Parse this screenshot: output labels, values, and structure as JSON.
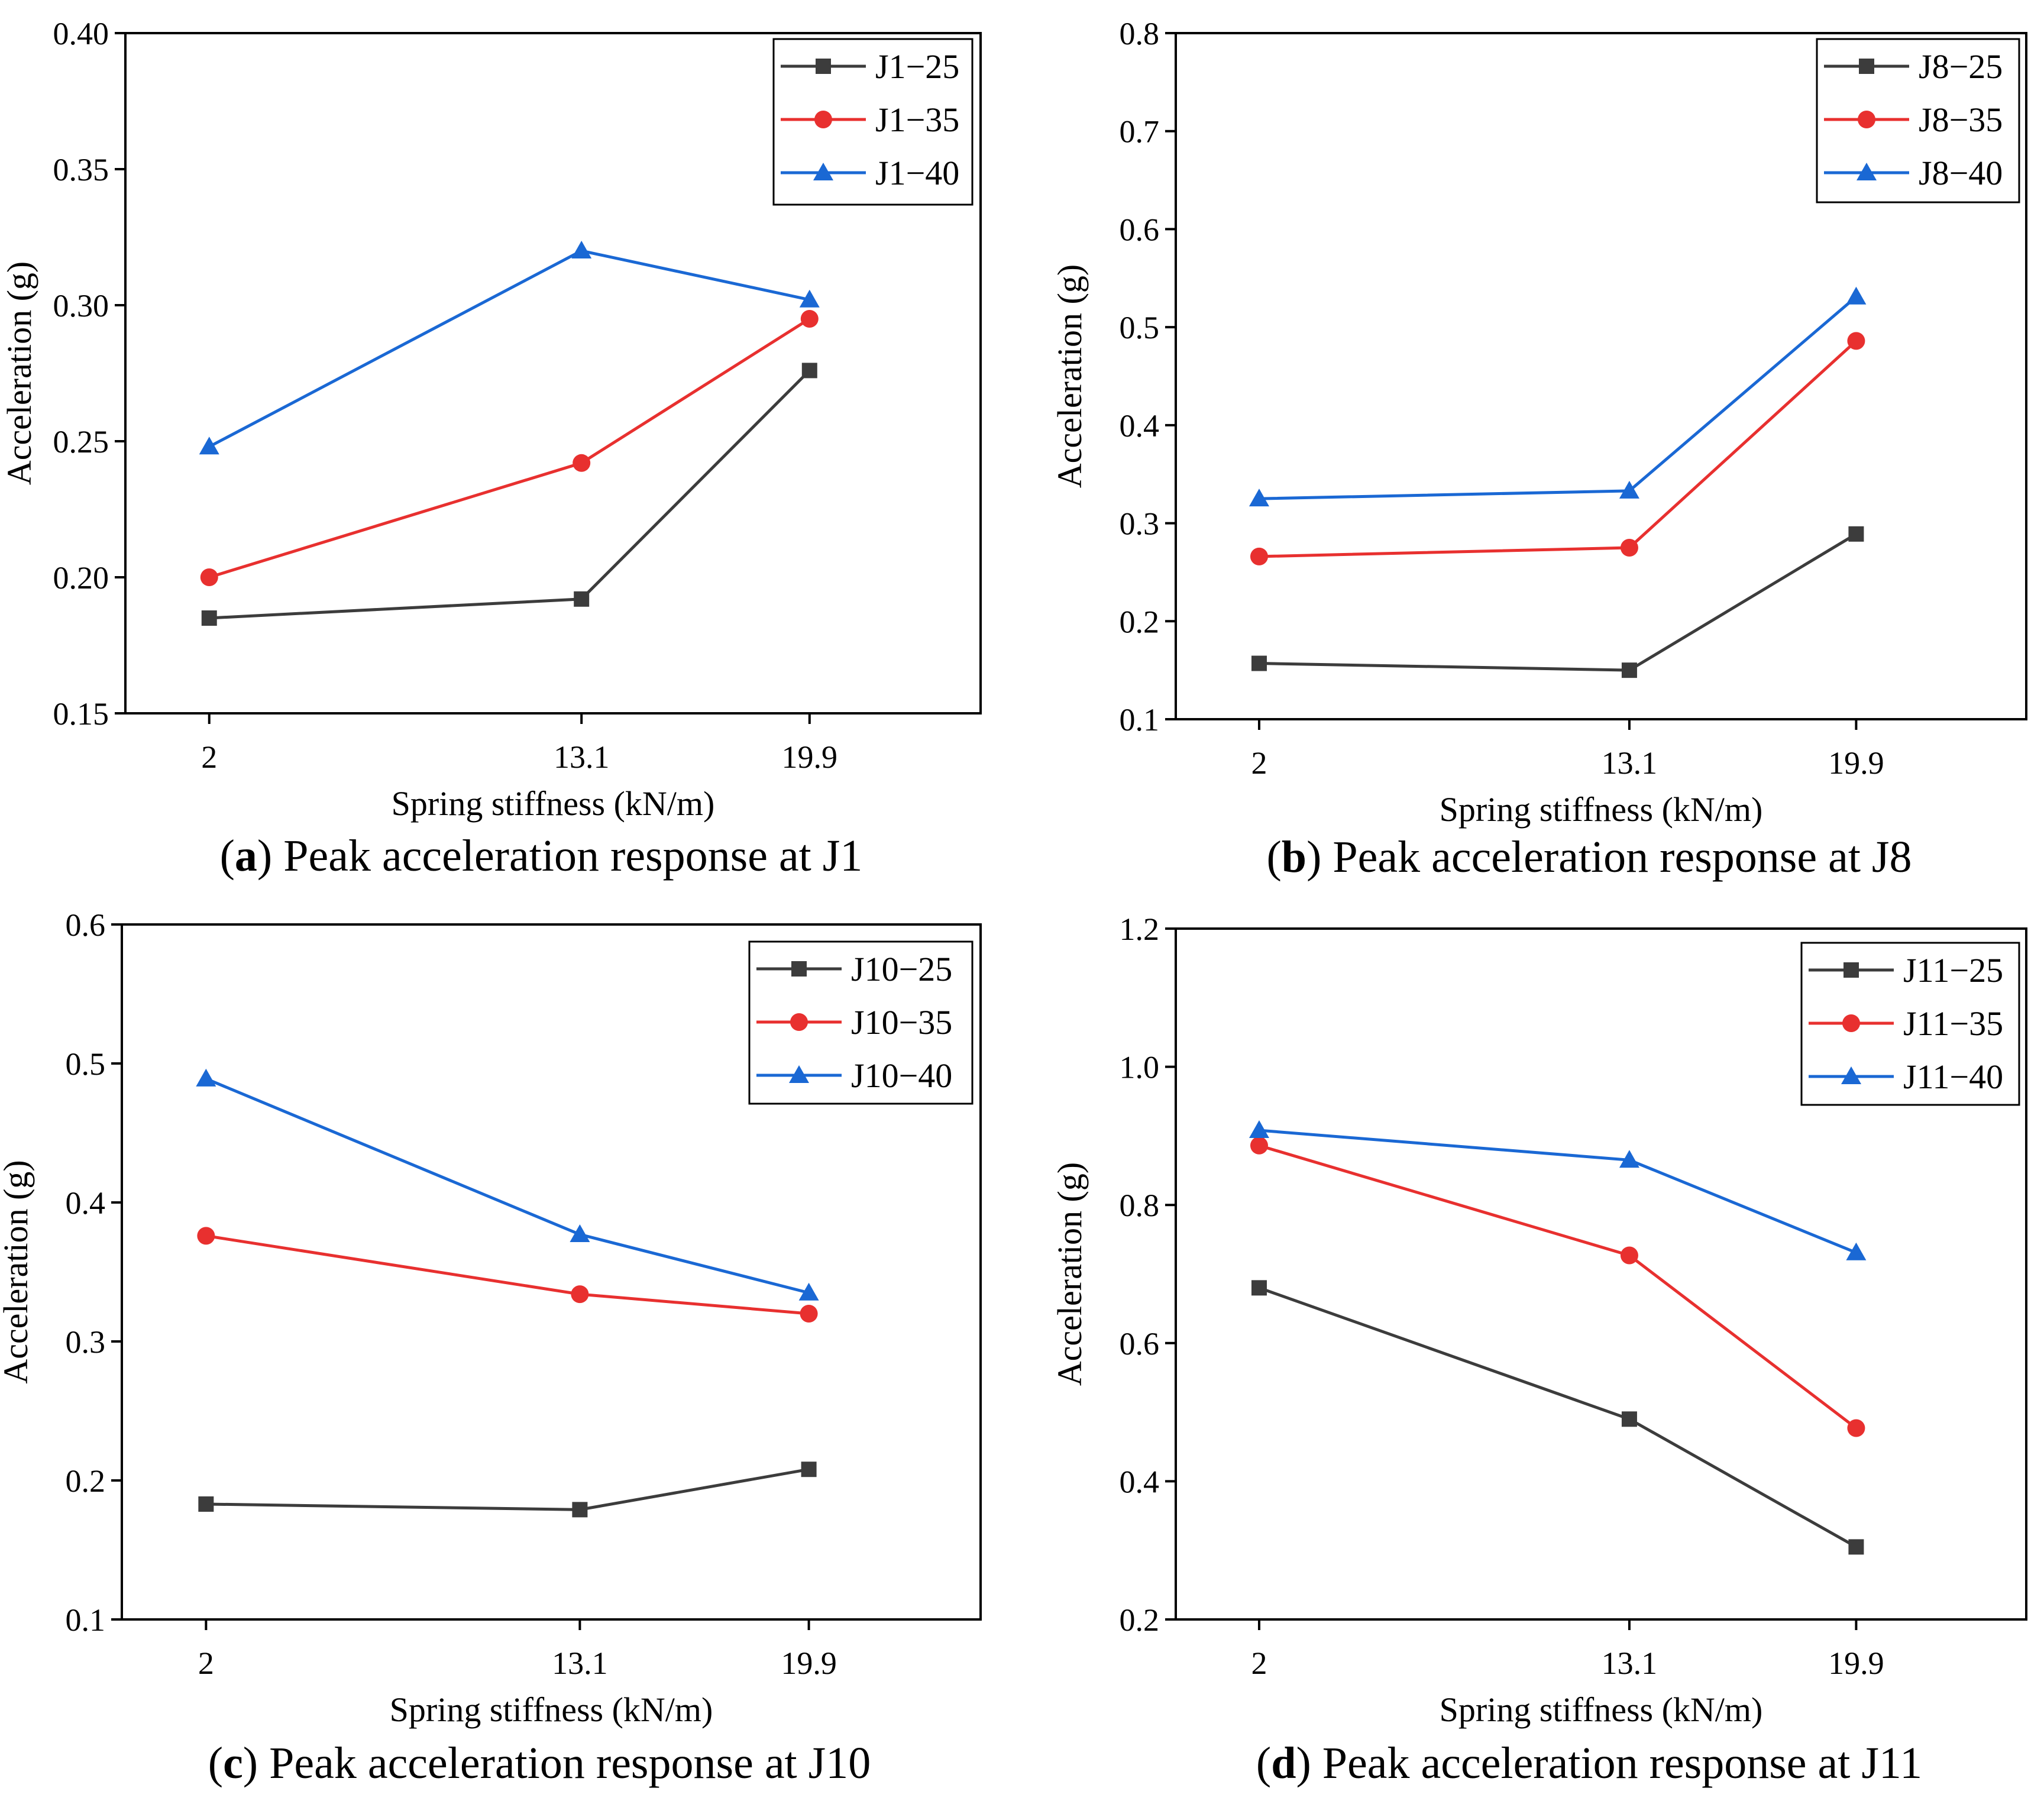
{
  "colors": {
    "series_1": "#3c3c3c",
    "series_2": "#e8302f",
    "series_3": "#1a68d4"
  },
  "markers": [
    "square",
    "circle",
    "triangle"
  ],
  "chart_data": [
    {
      "type": "line",
      "caption": {
        "letter": "a",
        "text": " Peak acceleration response at J1"
      },
      "xlabel": "Spring stiffness (kN/m)",
      "ylabel": "Acceleration (g)",
      "x": [
        2,
        13.1,
        19.9
      ],
      "x_ticks": [
        "2",
        "13.1",
        "19.9"
      ],
      "xlim": [
        -0.5,
        25.0
      ],
      "ylim": [
        0.15,
        0.4
      ],
      "y_ticks": [
        "0.15",
        "0.20",
        "0.25",
        "0.30",
        "0.35",
        "0.40"
      ],
      "legend_position": "top-right",
      "series": [
        {
          "name": "J1−25",
          "values": [
            0.185,
            0.192,
            0.276
          ]
        },
        {
          "name": "J1−35",
          "values": [
            0.2,
            0.242,
            0.295
          ]
        },
        {
          "name": "J1−40",
          "values": [
            0.248,
            0.32,
            0.302
          ]
        }
      ]
    },
    {
      "type": "line",
      "caption": {
        "letter": "b",
        "text": " Peak acceleration response at J8"
      },
      "xlabel": "Spring stiffness (kN/m)",
      "ylabel": "Acceleration (g)",
      "x": [
        2,
        13.1,
        19.9
      ],
      "x_ticks": [
        "2",
        "13.1",
        "19.9"
      ],
      "xlim": [
        -0.5,
        25.0
      ],
      "ylim": [
        0.1,
        0.8
      ],
      "y_ticks": [
        "0.1",
        "0.2",
        "0.3",
        "0.4",
        "0.5",
        "0.6",
        "0.7",
        "0.8"
      ],
      "legend_position": "top-right",
      "series": [
        {
          "name": "J8−25",
          "values": [
            0.157,
            0.15,
            0.289
          ]
        },
        {
          "name": "J8−35",
          "values": [
            0.266,
            0.275,
            0.486
          ]
        },
        {
          "name": "J8−40",
          "values": [
            0.325,
            0.333,
            0.531
          ]
        }
      ]
    },
    {
      "type": "line",
      "caption": {
        "letter": "c",
        "text": " Peak acceleration response at J10"
      },
      "xlabel": "Spring stiffness (kN/m)",
      "ylabel": "Acceleration (g)",
      "x": [
        2,
        13.1,
        19.9
      ],
      "x_ticks": [
        "2",
        "13.1",
        "19.9"
      ],
      "xlim": [
        -0.5,
        25.0
      ],
      "ylim": [
        0.1,
        0.6
      ],
      "y_ticks": [
        "0.1",
        "0.2",
        "0.3",
        "0.4",
        "0.5",
        "0.6"
      ],
      "legend_position": "top-right",
      "series": [
        {
          "name": "J10−25",
          "values": [
            0.183,
            0.179,
            0.208
          ]
        },
        {
          "name": "J10−35",
          "values": [
            0.376,
            0.334,
            0.32
          ]
        },
        {
          "name": "J10−40",
          "values": [
            0.489,
            0.377,
            0.335
          ]
        }
      ]
    },
    {
      "type": "line",
      "caption": {
        "letter": "d",
        "text": " Peak acceleration response at J11"
      },
      "xlabel": "Spring stiffness (kN/m)",
      "ylabel": "Acceleration (g)",
      "x": [
        2,
        13.1,
        19.9
      ],
      "x_ticks": [
        "2",
        "13.1",
        "19.9"
      ],
      "xlim": [
        -0.5,
        25.0
      ],
      "ylim": [
        0.2,
        1.2
      ],
      "y_ticks": [
        "0.2",
        "0.4",
        "0.6",
        "0.8",
        "1.0",
        "1.2"
      ],
      "legend_position": "top-right",
      "series": [
        {
          "name": "J11−25",
          "values": [
            0.68,
            0.49,
            0.305
          ]
        },
        {
          "name": "J11−35",
          "values": [
            0.886,
            0.727,
            0.477
          ]
        },
        {
          "name": "J11−40",
          "values": [
            0.908,
            0.865,
            0.731
          ]
        }
      ]
    }
  ]
}
